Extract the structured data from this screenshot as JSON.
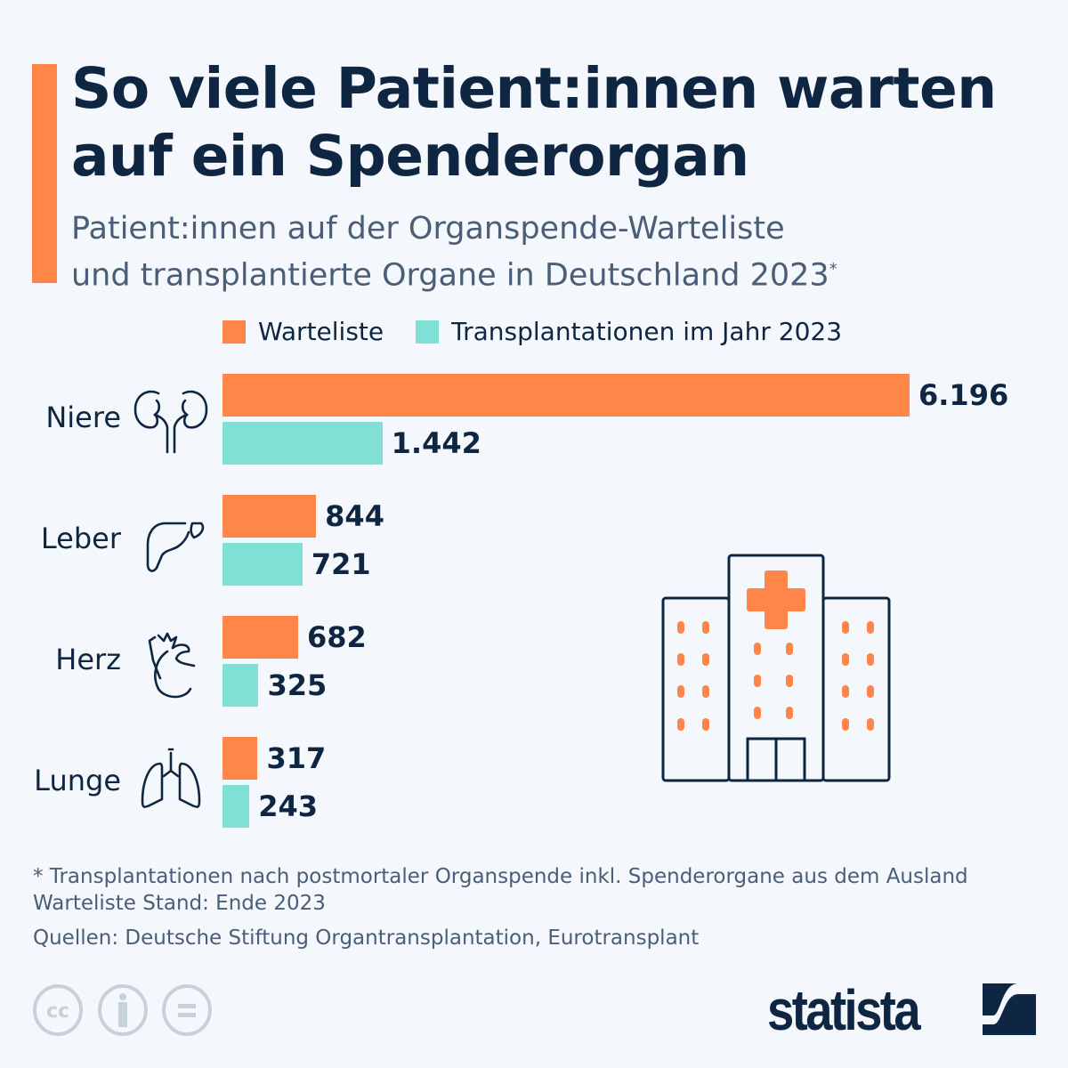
{
  "header": {
    "title": "So viele Patient:innen warten auf ein Spenderorgan",
    "subtitle_line1": "Patient:innen auf der Organspende-Warteliste",
    "subtitle_line2": "und transplantierte Organe in Deutschland 2023",
    "subtitle_mark": "*"
  },
  "chart_data": {
    "type": "bar",
    "orientation": "horizontal",
    "categories": [
      "Niere",
      "Leber",
      "Herz",
      "Lunge"
    ],
    "category_icons": [
      "kidney-icon",
      "liver-icon",
      "heart-icon",
      "lung-icon"
    ],
    "series": [
      {
        "name": "Warteliste",
        "color": "#ff8548",
        "values": [
          6196,
          844,
          682,
          317
        ],
        "labels": [
          "6.196",
          "844",
          "682",
          "317"
        ]
      },
      {
        "name": "Transplantationen im Jahr 2023",
        "color": "#81e0d6",
        "values": [
          1442,
          721,
          325,
          243
        ],
        "labels": [
          "1.442",
          "721",
          "325",
          "243"
        ]
      }
    ],
    "legend_position": "top",
    "grid": false
  },
  "footer": {
    "note1": "* Transplantationen nach postmortaler Organspende inkl. Spenderorgane aus dem Ausland",
    "note2": "Warteliste Stand: Ende 2023",
    "sources": "Quellen: Deutsche Stiftung Organtransplantation, Eurotransplant",
    "brand": "statista",
    "license_icons": [
      "cc-icon",
      "attribution-icon",
      "no-derivatives-icon"
    ]
  }
}
